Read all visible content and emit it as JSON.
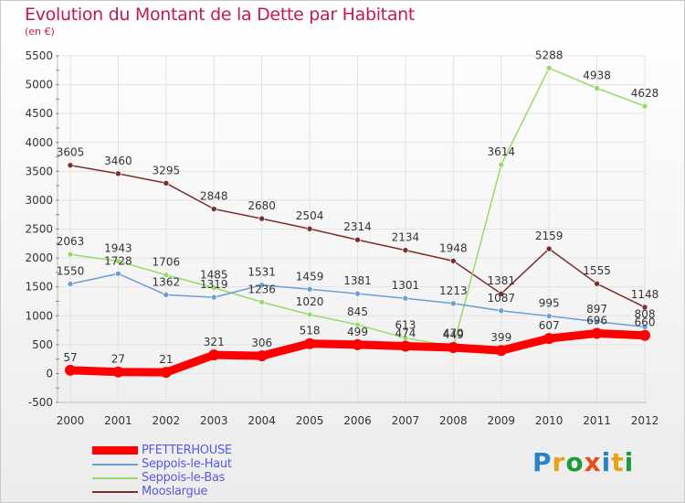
{
  "title": "Evolution du Montant de la Dette par Habitant",
  "subtitle": "(en €)",
  "brand": {
    "text": "Proxiti",
    "letter_colors": [
      "#2a82c8",
      "#e7a21a",
      "#1e9b3a",
      "#e74c1c",
      "#2a82c8",
      "#e7a21a",
      "#1e9b3a"
    ]
  },
  "colors": {
    "title": "#c2185b",
    "legend_text": "#5a5ad8"
  },
  "chart_data": {
    "type": "line",
    "x": [
      "2000",
      "2001",
      "2002",
      "2003",
      "2004",
      "2005",
      "2006",
      "2007",
      "2008",
      "2009",
      "2010",
      "2011",
      "2012"
    ],
    "ylim": [
      -500,
      5500
    ],
    "yticks": [
      -500,
      0,
      500,
      1000,
      1500,
      2000,
      2500,
      3000,
      3500,
      4000,
      4500,
      5000,
      5500
    ],
    "grid": true,
    "legend_position": "bottom-left",
    "series": [
      {
        "name": "PFETTERHOUSE",
        "color": "#ff0000",
        "width": 9,
        "values": [
          57,
          27,
          21,
          321,
          306,
          518,
          499,
          474,
          449,
          399,
          607,
          696,
          660
        ],
        "labels": [
          "57",
          "27",
          "21",
          "321",
          "306",
          "518",
          "499",
          "474",
          "449",
          "399",
          "607",
          "696",
          "660"
        ]
      },
      {
        "name": "Seppois-le-Haut",
        "color": "#6a9fd4",
        "width": 1.5,
        "values": [
          1550,
          1728,
          1362,
          1319,
          1531,
          1459,
          1381,
          1301,
          1213,
          1087,
          995,
          897,
          808
        ],
        "labels": [
          "1550",
          "1728",
          "1362",
          "1319",
          "1531",
          "1459",
          "1381",
          "1301",
          "1213",
          "1087",
          "995",
          "897",
          "808"
        ]
      },
      {
        "name": "Seppois-le-Bas",
        "color": "#99d96a",
        "width": 1.5,
        "values": [
          2063,
          1943,
          1706,
          1485,
          1236,
          1020,
          845,
          613,
          470,
          3614,
          5288,
          4938,
          4628
        ],
        "labels": [
          "2063",
          "1943",
          "1706",
          "1485",
          "1236",
          "1020",
          "845",
          "613",
          "470",
          "3614",
          "5288",
          "4938",
          "4628"
        ]
      },
      {
        "name": "Mooslargue",
        "color": "#7a2e2e",
        "width": 1.5,
        "values": [
          3605,
          3460,
          3295,
          2848,
          2680,
          2504,
          2314,
          2134,
          1948,
          1381,
          2159,
          1555,
          1148
        ],
        "labels": [
          "3605",
          "3460",
          "3295",
          "2848",
          "2680",
          "2504",
          "2314",
          "2134",
          "1948",
          "1381",
          "2159",
          "1555",
          "1148"
        ]
      }
    ]
  }
}
